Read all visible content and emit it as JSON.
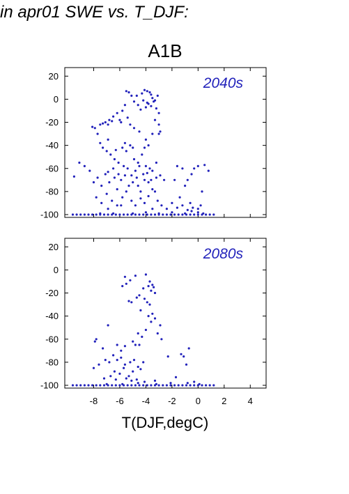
{
  "header": {
    "title": "in apr01 SWE vs. T_DJF:",
    "scenario": "A1B"
  },
  "colors": {
    "points": "#2222bb",
    "period_label": "#2222bb",
    "axes": "#000000"
  },
  "chart_data": [
    {
      "type": "scatter",
      "annotation": "2040s",
      "xlim": [
        -10,
        5
      ],
      "ylim": [
        -100,
        25
      ],
      "yticks": [
        20,
        0,
        -20,
        -40,
        -60,
        -80,
        -100
      ],
      "xticks": [
        -8,
        -6,
        -4,
        -2,
        0,
        2,
        4
      ],
      "show_xtick_labels": false,
      "grid": false,
      "points": [
        [
          -5.5,
          7
        ],
        [
          -5.3,
          6
        ],
        [
          -5.1,
          3
        ],
        [
          -4.9,
          -2
        ],
        [
          -4.6,
          -5
        ],
        [
          -4.3,
          5
        ],
        [
          -4.1,
          8
        ],
        [
          -3.9,
          7
        ],
        [
          -3.7,
          6
        ],
        [
          -3.6,
          4
        ],
        [
          -3.5,
          1
        ],
        [
          -3.4,
          -2
        ],
        [
          -3.8,
          -4
        ],
        [
          -4.0,
          -7
        ],
        [
          -4.4,
          -9
        ],
        [
          -3.2,
          -8
        ],
        [
          -3.1,
          3
        ],
        [
          -3.0,
          -12
        ],
        [
          -3.0,
          -22
        ],
        [
          -2.9,
          -28
        ],
        [
          -3.9,
          -3
        ],
        [
          -4.2,
          -1
        ],
        [
          -3.6,
          -6
        ],
        [
          -3.3,
          -1
        ],
        [
          -4.7,
          3
        ],
        [
          -5.6,
          -5
        ],
        [
          -5.8,
          -10
        ],
        [
          -6.2,
          -12
        ],
        [
          -6.5,
          -15
        ],
        [
          -6.8,
          -18
        ],
        [
          -7.1,
          -20
        ],
        [
          -7.5,
          -22
        ],
        [
          -7.9,
          -25
        ],
        [
          -8.1,
          -24
        ],
        [
          -6.9,
          -22
        ],
        [
          -6.0,
          -18
        ],
        [
          -5.4,
          -16
        ],
        [
          -5.2,
          -22
        ],
        [
          -4.9,
          -25
        ],
        [
          -4.5,
          -28
        ],
        [
          -4.0,
          -35
        ],
        [
          -3.8,
          -40
        ],
        [
          -3.5,
          -30
        ],
        [
          -3.3,
          -18
        ],
        [
          -3.0,
          -30
        ],
        [
          -5.9,
          -20
        ],
        [
          -6.6,
          -19
        ],
        [
          -7.3,
          -21
        ],
        [
          -7.7,
          -30
        ],
        [
          -7.5,
          -38
        ],
        [
          -7.3,
          -42
        ],
        [
          -7.0,
          -45
        ],
        [
          -6.7,
          -48
        ],
        [
          -6.4,
          -52
        ],
        [
          -6.1,
          -55
        ],
        [
          -5.8,
          -42
        ],
        [
          -5.5,
          -45
        ],
        [
          -5.2,
          -40
        ],
        [
          -4.9,
          -52
        ],
        [
          -4.6,
          -55
        ],
        [
          -4.3,
          -48
        ],
        [
          -4.0,
          -58
        ],
        [
          -3.7,
          -60
        ],
        [
          -3.5,
          -62
        ],
        [
          -3.2,
          -55
        ],
        [
          -6.9,
          -35
        ],
        [
          -5.6,
          -38
        ],
        [
          -5.0,
          -42
        ],
        [
          -4.1,
          -42
        ],
        [
          -6.3,
          -44
        ],
        [
          -9.1,
          -55
        ],
        [
          -8.7,
          -58
        ],
        [
          -8.3,
          -62
        ],
        [
          -8.0,
          -72
        ],
        [
          -7.7,
          -68
        ],
        [
          -7.4,
          -75
        ],
        [
          -7.1,
          -65
        ],
        [
          -6.8,
          -72
        ],
        [
          -6.5,
          -60
        ],
        [
          -6.2,
          -78
        ],
        [
          -5.9,
          -70
        ],
        [
          -5.6,
          -66
        ],
        [
          -5.3,
          -75
        ],
        [
          -5.0,
          -72
        ],
        [
          -4.7,
          -68
        ],
        [
          -4.4,
          -80
        ],
        [
          -4.1,
          -70
        ],
        [
          -3.8,
          -72
        ],
        [
          -3.5,
          -78
        ],
        [
          -3.2,
          -68
        ],
        [
          -2.9,
          -66
        ],
        [
          -2.6,
          -70
        ],
        [
          -6.1,
          -65
        ],
        [
          -5.7,
          -58
        ],
        [
          -5.4,
          -60
        ],
        [
          -4.8,
          -62
        ],
        [
          -4.5,
          -58
        ],
        [
          -4.2,
          -65
        ],
        [
          -3.9,
          -64
        ],
        [
          -3.6,
          -70
        ],
        [
          -3.3,
          -80
        ],
        [
          -5.1,
          -66
        ],
        [
          -6.4,
          -68
        ],
        [
          -6.9,
          -63
        ],
        [
          -9.5,
          -67
        ],
        [
          -1.6,
          -58
        ],
        [
          -1.2,
          -60
        ],
        [
          -0.8,
          -70
        ],
        [
          -0.3,
          -60
        ],
        [
          0.0,
          -58
        ],
        [
          0.5,
          -57
        ],
        [
          0.8,
          -62
        ],
        [
          -1.8,
          -70
        ],
        [
          -1.0,
          -75
        ],
        [
          -0.5,
          -65
        ],
        [
          0.3,
          -80
        ],
        [
          -1.4,
          -85
        ],
        [
          -0.6,
          -90
        ],
        [
          -7.8,
          -85
        ],
        [
          -7.4,
          -90
        ],
        [
          -7.0,
          -82
        ],
        [
          -6.6,
          -88
        ],
        [
          -6.2,
          -92
        ],
        [
          -5.8,
          -85
        ],
        [
          -5.5,
          -80
        ],
        [
          -5.1,
          -88
        ],
        [
          -4.8,
          -92
        ],
        [
          -4.4,
          -86
        ],
        [
          -4.1,
          -90
        ],
        [
          -3.8,
          -84
        ],
        [
          -3.5,
          -95
        ],
        [
          -3.1,
          -88
        ],
        [
          -2.8,
          -92
        ],
        [
          -2.4,
          -95
        ],
        [
          -2.0,
          -90
        ],
        [
          -1.6,
          -94
        ],
        [
          -1.2,
          -92
        ],
        [
          -0.8,
          -96
        ],
        [
          -0.4,
          -94
        ],
        [
          0.0,
          -95
        ],
        [
          0.2,
          -92
        ],
        [
          -4.6,
          -75
        ],
        [
          -5.9,
          -92
        ],
        [
          -6.9,
          -95
        ],
        [
          -9.6,
          -100
        ],
        [
          -9.3,
          -100
        ],
        [
          -9.0,
          -100
        ],
        [
          -8.7,
          -100
        ],
        [
          -8.4,
          -100
        ],
        [
          -8.1,
          -100
        ],
        [
          -7.8,
          -100
        ],
        [
          -7.5,
          -100
        ],
        [
          -7.2,
          -100
        ],
        [
          -6.9,
          -100
        ],
        [
          -6.6,
          -100
        ],
        [
          -6.3,
          -100
        ],
        [
          -6.0,
          -100
        ],
        [
          -5.7,
          -100
        ],
        [
          -5.4,
          -100
        ],
        [
          -5.1,
          -100
        ],
        [
          -4.8,
          -100
        ],
        [
          -4.5,
          -100
        ],
        [
          -4.2,
          -100
        ],
        [
          -3.9,
          -100
        ],
        [
          -3.6,
          -100
        ],
        [
          -3.3,
          -100
        ],
        [
          -3.0,
          -100
        ],
        [
          -2.7,
          -100
        ],
        [
          -2.4,
          -100
        ],
        [
          -2.1,
          -100
        ],
        [
          -1.8,
          -100
        ],
        [
          -1.5,
          -100
        ],
        [
          -1.2,
          -100
        ],
        [
          -0.9,
          -100
        ],
        [
          -0.6,
          -100
        ],
        [
          -0.3,
          -100
        ],
        [
          0.0,
          -100
        ],
        [
          0.3,
          -100
        ],
        [
          0.6,
          -100
        ],
        [
          0.9,
          -100
        ],
        [
          1.2,
          -100
        ],
        [
          -5.0,
          -99
        ],
        [
          -4.0,
          -98
        ],
        [
          -3.0,
          -99
        ],
        [
          -2.0,
          -98
        ],
        [
          -1.0,
          -99
        ],
        [
          0.0,
          -98
        ],
        [
          -0.5,
          -97
        ],
        [
          0.4,
          -99
        ],
        [
          -6.5,
          -99
        ],
        [
          -7.5,
          -99
        ]
      ]
    },
    {
      "type": "scatter",
      "annotation": "2080s",
      "xlim": [
        -10,
        5
      ],
      "ylim": [
        -100,
        25
      ],
      "yticks": [
        20,
        0,
        -20,
        -40,
        -60,
        -80,
        -100
      ],
      "xticks": [
        -8,
        -6,
        -4,
        -2,
        0,
        2,
        4
      ],
      "xtick_labels": [
        "-8",
        "-6",
        "-4",
        "-2",
        "0",
        "2",
        "4"
      ],
      "show_xtick_labels": true,
      "xlabel": "T(DJF,degC)",
      "grid": false,
      "points": [
        [
          -5.6,
          -6
        ],
        [
          -4.8,
          -5
        ],
        [
          -4.0,
          -4
        ],
        [
          -3.7,
          -10
        ],
        [
          -3.5,
          -13
        ],
        [
          -3.4,
          -15
        ],
        [
          -3.6,
          -18
        ],
        [
          -3.3,
          -20
        ],
        [
          -3.8,
          -14
        ],
        [
          -4.2,
          -16
        ],
        [
          -5.2,
          -9
        ],
        [
          -5.5,
          -12
        ],
        [
          -5.8,
          -14
        ],
        [
          -4.5,
          -22
        ],
        [
          -4.1,
          -25
        ],
        [
          -3.9,
          -28
        ],
        [
          -5.3,
          -27
        ],
        [
          -5.1,
          -28
        ],
        [
          -4.7,
          -24
        ],
        [
          -3.7,
          -30
        ],
        [
          -4.4,
          -35
        ],
        [
          -3.8,
          -40
        ],
        [
          -3.6,
          -45
        ],
        [
          -3.3,
          -42
        ],
        [
          -3.1,
          -55
        ],
        [
          -2.9,
          -48
        ],
        [
          -3.5,
          -38
        ],
        [
          -4.0,
          -52
        ],
        [
          -4.3,
          -58
        ],
        [
          -4.6,
          -55
        ],
        [
          -5.0,
          -62
        ],
        [
          -6.9,
          -48
        ],
        [
          -7.8,
          -60
        ],
        [
          -7.9,
          -62
        ],
        [
          -7.3,
          -68
        ],
        [
          -6.2,
          -65
        ],
        [
          -5.9,
          -70
        ],
        [
          -5.6,
          -66
        ],
        [
          -4.8,
          -65
        ],
        [
          -4.5,
          -65
        ],
        [
          -2.8,
          -60
        ],
        [
          -8.0,
          -85
        ],
        [
          -7.6,
          -82
        ],
        [
          -7.1,
          -78
        ],
        [
          -6.8,
          -80
        ],
        [
          -6.5,
          -74
        ],
        [
          -6.2,
          -78
        ],
        [
          -5.9,
          -76
        ],
        [
          -5.6,
          -82
        ],
        [
          -5.2,
          -80
        ],
        [
          -4.9,
          -78
        ],
        [
          -4.6,
          -84
        ],
        [
          -4.2,
          -80
        ],
        [
          -6.4,
          -88
        ],
        [
          -6.0,
          -90
        ],
        [
          -5.7,
          -85
        ],
        [
          -5.3,
          -92
        ],
        [
          -5.0,
          -88
        ],
        [
          -4.7,
          -95
        ],
        [
          -6.7,
          -92
        ],
        [
          -5.5,
          -94
        ],
        [
          -4.4,
          -86
        ],
        [
          -5.1,
          -96
        ],
        [
          -6.3,
          -95
        ],
        [
          -7.2,
          -94
        ],
        [
          -2.3,
          -75
        ],
        [
          -1.3,
          -73
        ],
        [
          -1.1,
          -75
        ],
        [
          -0.7,
          -68
        ],
        [
          -0.9,
          -82
        ],
        [
          -1.7,
          -93
        ],
        [
          -3.3,
          -96
        ],
        [
          -4.1,
          -97
        ],
        [
          -9.6,
          -100
        ],
        [
          -9.3,
          -100
        ],
        [
          -9.0,
          -100
        ],
        [
          -8.7,
          -100
        ],
        [
          -8.4,
          -100
        ],
        [
          -8.1,
          -100
        ],
        [
          -7.8,
          -100
        ],
        [
          -7.5,
          -100
        ],
        [
          -7.2,
          -100
        ],
        [
          -6.9,
          -100
        ],
        [
          -6.6,
          -100
        ],
        [
          -6.3,
          -100
        ],
        [
          -6.0,
          -100
        ],
        [
          -5.7,
          -100
        ],
        [
          -5.4,
          -100
        ],
        [
          -5.1,
          -100
        ],
        [
          -4.8,
          -100
        ],
        [
          -4.5,
          -100
        ],
        [
          -4.2,
          -100
        ],
        [
          -3.9,
          -100
        ],
        [
          -3.6,
          -100
        ],
        [
          -3.3,
          -100
        ],
        [
          -3.0,
          -100
        ],
        [
          -2.7,
          -100
        ],
        [
          -2.4,
          -100
        ],
        [
          -2.1,
          -100
        ],
        [
          -1.8,
          -100
        ],
        [
          -1.5,
          -100
        ],
        [
          -1.2,
          -100
        ],
        [
          -0.9,
          -100
        ],
        [
          -0.6,
          -100
        ],
        [
          -0.3,
          -100
        ],
        [
          0.0,
          -100
        ],
        [
          0.3,
          -100
        ],
        [
          0.6,
          -100
        ],
        [
          0.9,
          -100
        ],
        [
          1.2,
          -100
        ],
        [
          -5.8,
          -99
        ],
        [
          -4.6,
          -98
        ],
        [
          -3.2,
          -99
        ],
        [
          -2.1,
          -98
        ],
        [
          -0.8,
          -98
        ],
        [
          0.1,
          -99
        ],
        [
          -0.3,
          -97
        ],
        [
          -7.0,
          -99
        ]
      ]
    }
  ]
}
